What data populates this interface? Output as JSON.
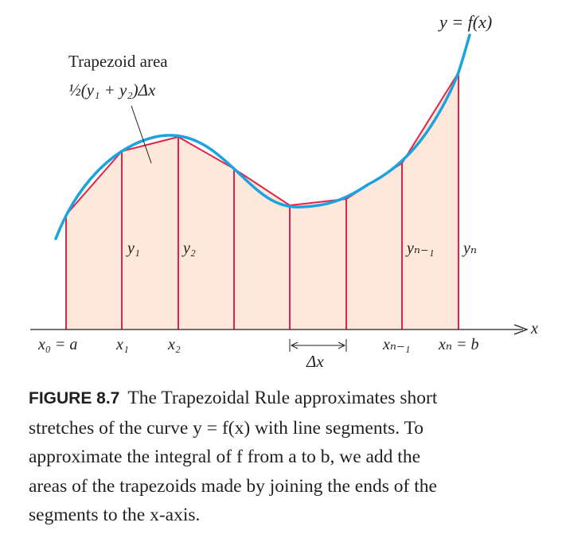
{
  "curve_label": "y = f(x)",
  "area_title": "Trapezoid area",
  "area_formula": "½(y₁ + y₂)Δx",
  "x_axis_label": "x",
  "y_labels": {
    "y1": "y₁",
    "y2": "y₂",
    "yn_minus_1": "yₙ₋₁",
    "yn": "yₙ"
  },
  "x_labels": {
    "x0": "x₀ = a",
    "x1": "x₁",
    "x2": "x₂",
    "xn_minus_1": "xₙ₋₁",
    "xn": "xₙ = b"
  },
  "delta_label": "Δx",
  "colors": {
    "curve": "#1aa3e0",
    "segment": "#e1254a",
    "fill": "#fde8d9",
    "axis": "#231f20"
  },
  "caption": {
    "label": "FIGURE 8.7",
    "lines": [
      "The Trapezoidal Rule approximates short",
      "stretches of the curve y = f(x) with line segments. To",
      "approximate the integral of f from a to b, we add the",
      "areas of the trapezoids made by joining the ends of the",
      "segments to the x-axis."
    ]
  }
}
